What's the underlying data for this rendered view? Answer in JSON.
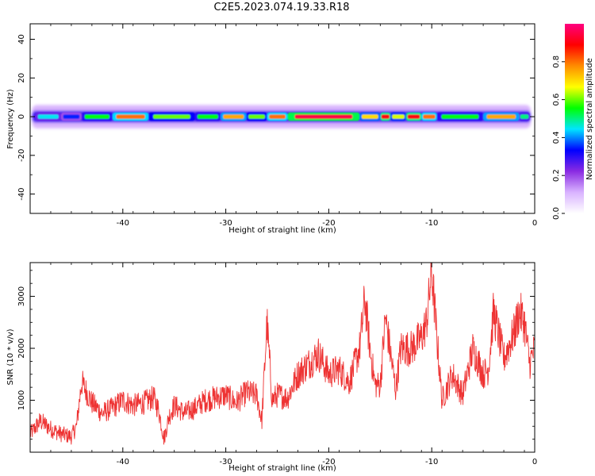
{
  "title": "C2E5.2023.074.19.33.R18",
  "chart_data": [
    {
      "type": "heatmap",
      "xlabel": "Height of straight line (km)",
      "ylabel": "Frequency (Hz)",
      "xlim": [
        -49,
        0
      ],
      "ylim": [
        -50,
        48
      ],
      "x_ticks": [
        -40,
        -30,
        -20,
        -10,
        0
      ],
      "y_ticks": [
        -40,
        -20,
        0,
        20,
        40
      ],
      "colorbar": {
        "label": "Normalized spectral amplitude",
        "range": [
          0,
          1
        ],
        "ticks": [
          0.0,
          0.2,
          0.4,
          0.6,
          0.8
        ],
        "colormap": [
          "#ffffff",
          "#d9b3ff",
          "#8a2be2",
          "#0000ff",
          "#00e5ff",
          "#00ff00",
          "#ffff00",
          "#ff8c00",
          "#ff0000",
          "#ff0080"
        ]
      },
      "ridge": {
        "frequency_hz": 0,
        "segments": [
          {
            "x": [
              -48.5,
              -46
            ],
            "amp": 0.45
          },
          {
            "x": [
              -46,
              -44
            ],
            "amp": 0.35
          },
          {
            "x": [
              -44,
              -41
            ],
            "amp": 0.55
          },
          {
            "x": [
              -41,
              -37.5
            ],
            "amp": 0.8
          },
          {
            "x": [
              -37.5,
              -33
            ],
            "amp": 0.6
          },
          {
            "x": [
              -33,
              -30.5
            ],
            "amp": 0.55
          },
          {
            "x": [
              -30.5,
              -28
            ],
            "amp": 0.75
          },
          {
            "x": [
              -28,
              -26
            ],
            "amp": 0.6
          },
          {
            "x": [
              -26,
              -24
            ],
            "amp": 0.8
          },
          {
            "x": [
              -24,
              -17
            ],
            "amp": 0.95
          },
          {
            "x": [
              -17,
              -15
            ],
            "amp": 0.7
          },
          {
            "x": [
              -15,
              -14
            ],
            "amp": 0.9
          },
          {
            "x": [
              -14,
              -12.5
            ],
            "amp": 0.65
          },
          {
            "x": [
              -12.5,
              -11
            ],
            "amp": 0.9
          },
          {
            "x": [
              -11,
              -9.5
            ],
            "amp": 0.8
          },
          {
            "x": [
              -9.5,
              -5
            ],
            "amp": 0.55
          },
          {
            "x": [
              -5,
              -1.5
            ],
            "amp": 0.75
          },
          {
            "x": [
              -1.5,
              -0.5
            ],
            "amp": 0.5
          }
        ]
      }
    },
    {
      "type": "line",
      "xlabel": "Height of straight line (km)",
      "ylabel": "SNR (10 * v/v)",
      "xlim": [
        -49,
        0
      ],
      "ylim": [
        0,
        3650
      ],
      "x_ticks": [
        -40,
        -30,
        -20,
        -10,
        0
      ],
      "y_ticks": [
        1000,
        2000,
        3000
      ],
      "series": [
        {
          "color": "#ee3333",
          "x": [
            -49,
            -48,
            -47,
            -46,
            -45,
            -44.5,
            -44,
            -43,
            -42,
            -41,
            -40,
            -39,
            -38,
            -37,
            -36.5,
            -36,
            -35.5,
            -35,
            -34,
            -33,
            -32,
            -31,
            -30,
            -29,
            -28,
            -27,
            -26.5,
            -26,
            -25.5,
            -25,
            -24,
            -23,
            -22,
            -21,
            -20,
            -19,
            -18,
            -17,
            -16.5,
            -16,
            -15.5,
            -15,
            -14.5,
            -14,
            -13.5,
            -13,
            -12,
            -11,
            -10.5,
            -10,
            -9.5,
            -9,
            -8,
            -7,
            -6,
            -5,
            -4.5,
            -4,
            -3,
            -2,
            -1.5,
            -1,
            -0.5,
            0
          ],
          "values": [
            350,
            600,
            450,
            350,
            300,
            500,
            1350,
            950,
            750,
            850,
            1000,
            900,
            950,
            1050,
            800,
            250,
            700,
            900,
            750,
            850,
            1000,
            1050,
            1100,
            950,
            1150,
            1100,
            600,
            2500,
            1000,
            1100,
            1050,
            1500,
            1700,
            1900,
            1500,
            1600,
            1350,
            2000,
            2950,
            2000,
            1300,
            1300,
            2600,
            1900,
            1200,
            2000,
            2000,
            2200,
            2500,
            3500,
            2200,
            1000,
            1500,
            1100,
            2000,
            1500,
            1600,
            2700,
            1800,
            2300,
            2700,
            2500,
            1700,
            2000
          ]
        }
      ]
    }
  ]
}
